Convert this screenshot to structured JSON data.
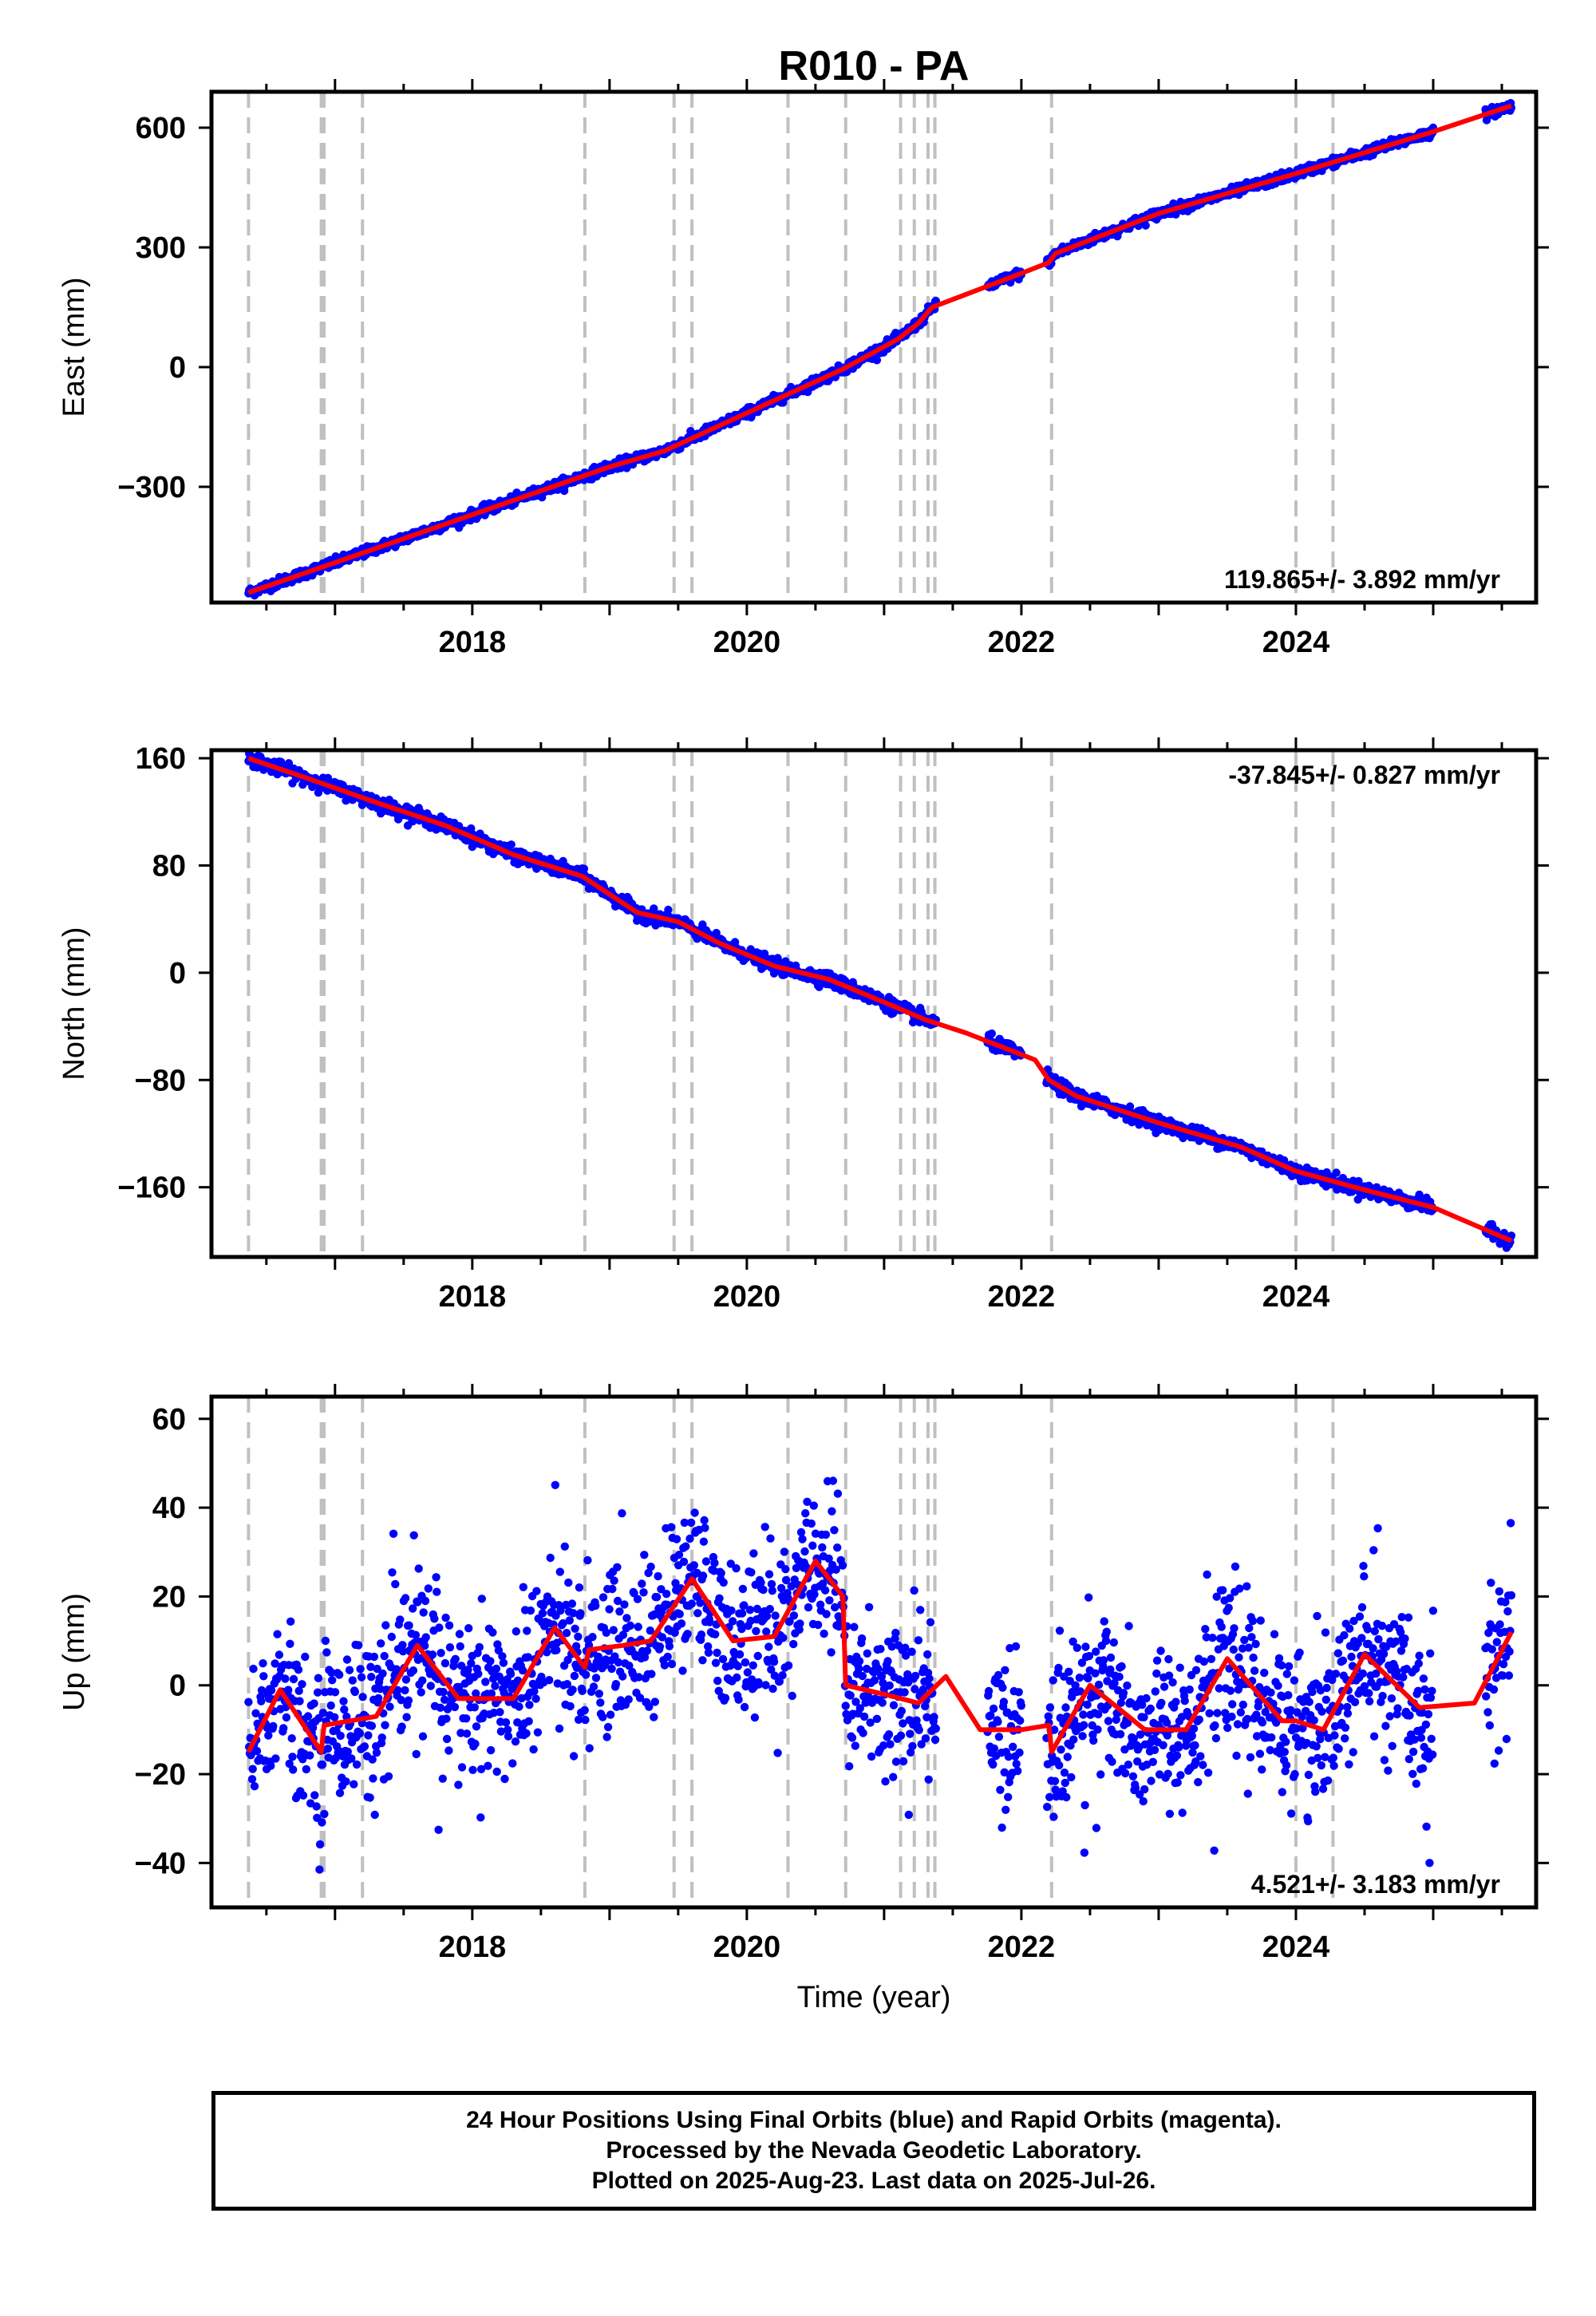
{
  "title": "R010 - PA",
  "x_axis_title": "Time (year)",
  "footer": {
    "line1": "24 Hour Positions Using Final Orbits (blue) and Rapid Orbits (magenta).",
    "line2": "Processed by the Nevada Geodetic Laboratory.",
    "line3": "Plotted on 2025-Aug-23. Last data on 2025-Jul-26."
  },
  "colors": {
    "points": "#0000ff",
    "model": "#ff0000",
    "gridlines": "#c0c0c0",
    "frame": "#000000"
  },
  "chart_data": [
    {
      "type": "scatter",
      "panel": "east",
      "ylabel": "East (mm)",
      "rate_label": "119.865+/- 3.892 mm/yr",
      "xlim": [
        2016.1,
        2025.75
      ],
      "ylim": [
        -590,
        690
      ],
      "xticks": [
        2018,
        2020,
        2022,
        2024
      ],
      "yticks": [
        -300,
        0,
        300,
        600
      ],
      "series": [
        {
          "role": "model",
          "x": [
            2016.37,
            2017.0,
            2018.0,
            2019.0,
            2019.4,
            2020.0,
            2020.7,
            2021.1,
            2021.25,
            2021.35,
            2022.0,
            2022.2,
            2022.25,
            2023.0,
            2024.0,
            2025.0,
            2025.57
          ],
          "y": [
            -565,
            -490,
            -370,
            -250,
            -210,
            -115,
            -5,
            70,
            110,
            150,
            235,
            262,
            285,
            385,
            485,
            590,
            655
          ]
        },
        {
          "role": "daily_positions",
          "trend_mm_per_yr": 119.865,
          "scatter_mm": 6
        }
      ]
    },
    {
      "type": "scatter",
      "panel": "north",
      "ylabel": "North (mm)",
      "rate_label": "-37.845+/- 0.827 mm/yr",
      "xlim": [
        2016.1,
        2025.75
      ],
      "ylim": [
        -212,
        166
      ],
      "xticks": [
        2018,
        2020,
        2022,
        2024
      ],
      "yticks": [
        -160,
        -80,
        0,
        80,
        160
      ],
      "series": [
        {
          "role": "model",
          "x": [
            2016.37,
            2016.8,
            2017.3,
            2017.8,
            2018.3,
            2018.8,
            2019.2,
            2019.5,
            2019.8,
            2020.2,
            2020.6,
            2021.0,
            2021.3,
            2021.6,
            2022.1,
            2022.2,
            2022.4,
            2023.0,
            2023.6,
            2024.0,
            2024.5,
            2025.0,
            2025.57
          ],
          "y": [
            160,
            145,
            127,
            110,
            88,
            72,
            45,
            38,
            22,
            5,
            -5,
            -22,
            -35,
            -45,
            -65,
            -80,
            -92,
            -112,
            -130,
            -148,
            -162,
            -175,
            -200
          ]
        },
        {
          "role": "daily_positions",
          "trend_mm_per_yr": -37.845,
          "scatter_mm": 2.5
        }
      ]
    },
    {
      "type": "scatter",
      "panel": "up",
      "ylabel": "Up (mm)",
      "rate_label": "4.521+/- 3.183 mm/yr",
      "xlim": [
        2016.1,
        2025.75
      ],
      "ylim": [
        -50,
        65
      ],
      "xticks": [
        2018,
        2020,
        2022,
        2024
      ],
      "yticks": [
        -40,
        -20,
        0,
        20,
        40,
        60
      ],
      "series": [
        {
          "role": "model",
          "x": [
            2016.37,
            2016.6,
            2016.9,
            2016.92,
            2017.3,
            2017.6,
            2017.9,
            2018.3,
            2018.6,
            2018.82,
            2018.85,
            2019.1,
            2019.3,
            2019.6,
            2019.9,
            2020.2,
            2020.5,
            2020.7,
            2020.72,
            2021.0,
            2021.25,
            2021.45,
            2021.7,
            2022.0,
            2022.2,
            2022.22,
            2022.5,
            2022.9,
            2023.2,
            2023.5,
            2023.9,
            2024.0,
            2024.2,
            2024.5,
            2024.9,
            2025.3,
            2025.57
          ],
          "y": [
            -15,
            -1,
            -15,
            -9,
            -7,
            9,
            -3,
            -3,
            13,
            4,
            8,
            9,
            10,
            24,
            10,
            11,
            28,
            20,
            0,
            -2,
            -4,
            2,
            -10,
            -10,
            -9,
            -15,
            0,
            -10,
            -10,
            6,
            -8,
            -8,
            -10,
            7,
            -5,
            -4,
            12
          ]
        },
        {
          "role": "daily_positions",
          "trend_mm_per_yr": 4.521,
          "scatter_mm": 9
        }
      ]
    }
  ],
  "equipment_change_years": [
    2016.37,
    2016.9,
    2016.92,
    2017.2,
    2018.82,
    2019.47,
    2019.6,
    2020.3,
    2020.72,
    2021.12,
    2021.22,
    2021.32,
    2021.37,
    2022.22,
    2024.0,
    2024.27
  ]
}
